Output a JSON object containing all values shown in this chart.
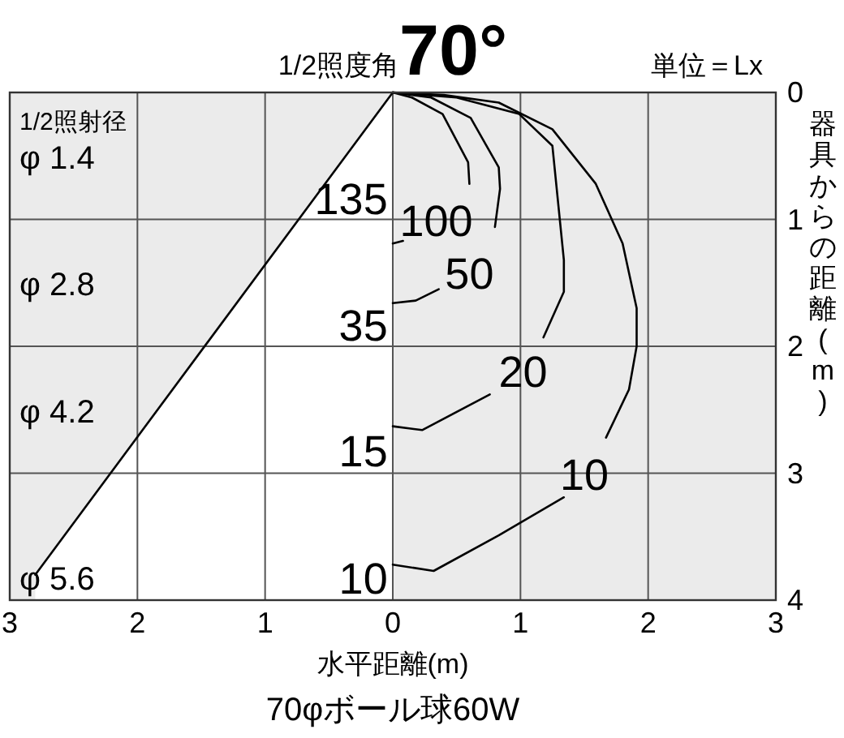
{
  "chart_data": {
    "type": "line",
    "title": "1/2照度角**70°**",
    "xlabel": "水平距離(m)",
    "ylabel": "器具からの距離(m)",
    "xlim": [
      -3,
      3
    ],
    "ylim": [
      4,
      0
    ],
    "xticks": [
      {
        "value": -3,
        "label": "3"
      },
      {
        "value": -2,
        "label": "2"
      },
      {
        "value": -1,
        "label": "1"
      },
      0,
      1,
      2,
      3
    ],
    "yticks": [
      0,
      1,
      2,
      3,
      4
    ],
    "grid": true,
    "series": [
      {
        "color": "#000000",
        "x": [
          0,
          -2.8
        ],
        "values": [
          0,
          3.8
        ]
      },
      {
        "color": "#000000",
        "x": [
          0,
          0.15,
          0.39,
          0.59,
          0.6,
          null,
          0.08,
          0
        ],
        "values": [
          0,
          0.04,
          0.17,
          0.55,
          0.72,
          null,
          1.17,
          1.19
        ]
      },
      {
        "color": "#000000",
        "x": [
          0,
          0.3,
          0.61,
          0.83,
          0.84,
          0.8,
          null,
          0.36,
          0.18,
          0
        ],
        "values": [
          0,
          0.04,
          0.2,
          0.59,
          0.76,
          1.06,
          null,
          1.55,
          1.64,
          1.66
        ]
      },
      {
        "color": "#000000",
        "x": [
          0,
          0.5,
          0.99,
          1.25,
          1.34,
          1.34,
          1.18,
          null,
          0.76,
          0.23,
          0
        ],
        "values": [
          0,
          0.04,
          0.17,
          0.42,
          1.32,
          1.57,
          1.93,
          null,
          2.38,
          2.66,
          2.63
        ]
      },
      {
        "color": "#000000",
        "x": [
          0,
          0.4,
          0.83,
          1.25,
          1.59,
          1.8,
          1.91,
          1.91,
          1.85,
          1.67,
          null,
          1.34,
          0.83,
          0.32,
          0
        ],
        "values": [
          0,
          0.02,
          0.08,
          0.29,
          0.72,
          1.19,
          1.7,
          2.0,
          2.34,
          2.72,
          null,
          3.19,
          3.49,
          3.77,
          3.72
        ]
      }
    ],
    "annotations": [
      "単位＝Lx",
      "1/2照射径",
      "70φボール球60W",
      "100",
      "50",
      "20",
      "10",
      "135",
      "35",
      "15",
      "10",
      "φ 1.4",
      "φ 2.8",
      "φ 4.2",
      "φ 5.6"
    ]
  }
}
